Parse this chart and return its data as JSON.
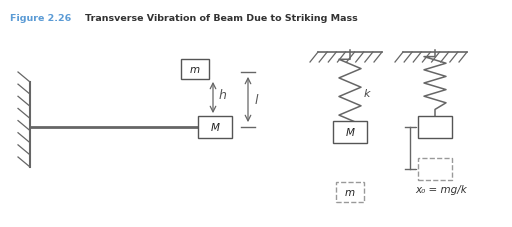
{
  "fig_width": 5.12,
  "fig_height": 2.28,
  "dpi": 100,
  "bg_color": "#ffffff",
  "line_color": "#666666",
  "box_color": "#ffffff",
  "box_edge": "#555555",
  "spring_color": "#666666",
  "dash_box_color": "#999999",
  "caption_bold": "Figure 2.26",
  "caption_normal": "    Transverse Vibration of Beam Due to Striking Mass",
  "caption_color": "#5b9bd5",
  "caption_normal_color": "#333333",
  "label_m": "m",
  "label_M_left": "M",
  "label_M_right": "M",
  "label_h": "h",
  "label_l": "l",
  "label_k": "k",
  "label_x0": "x₀ = mg/k"
}
